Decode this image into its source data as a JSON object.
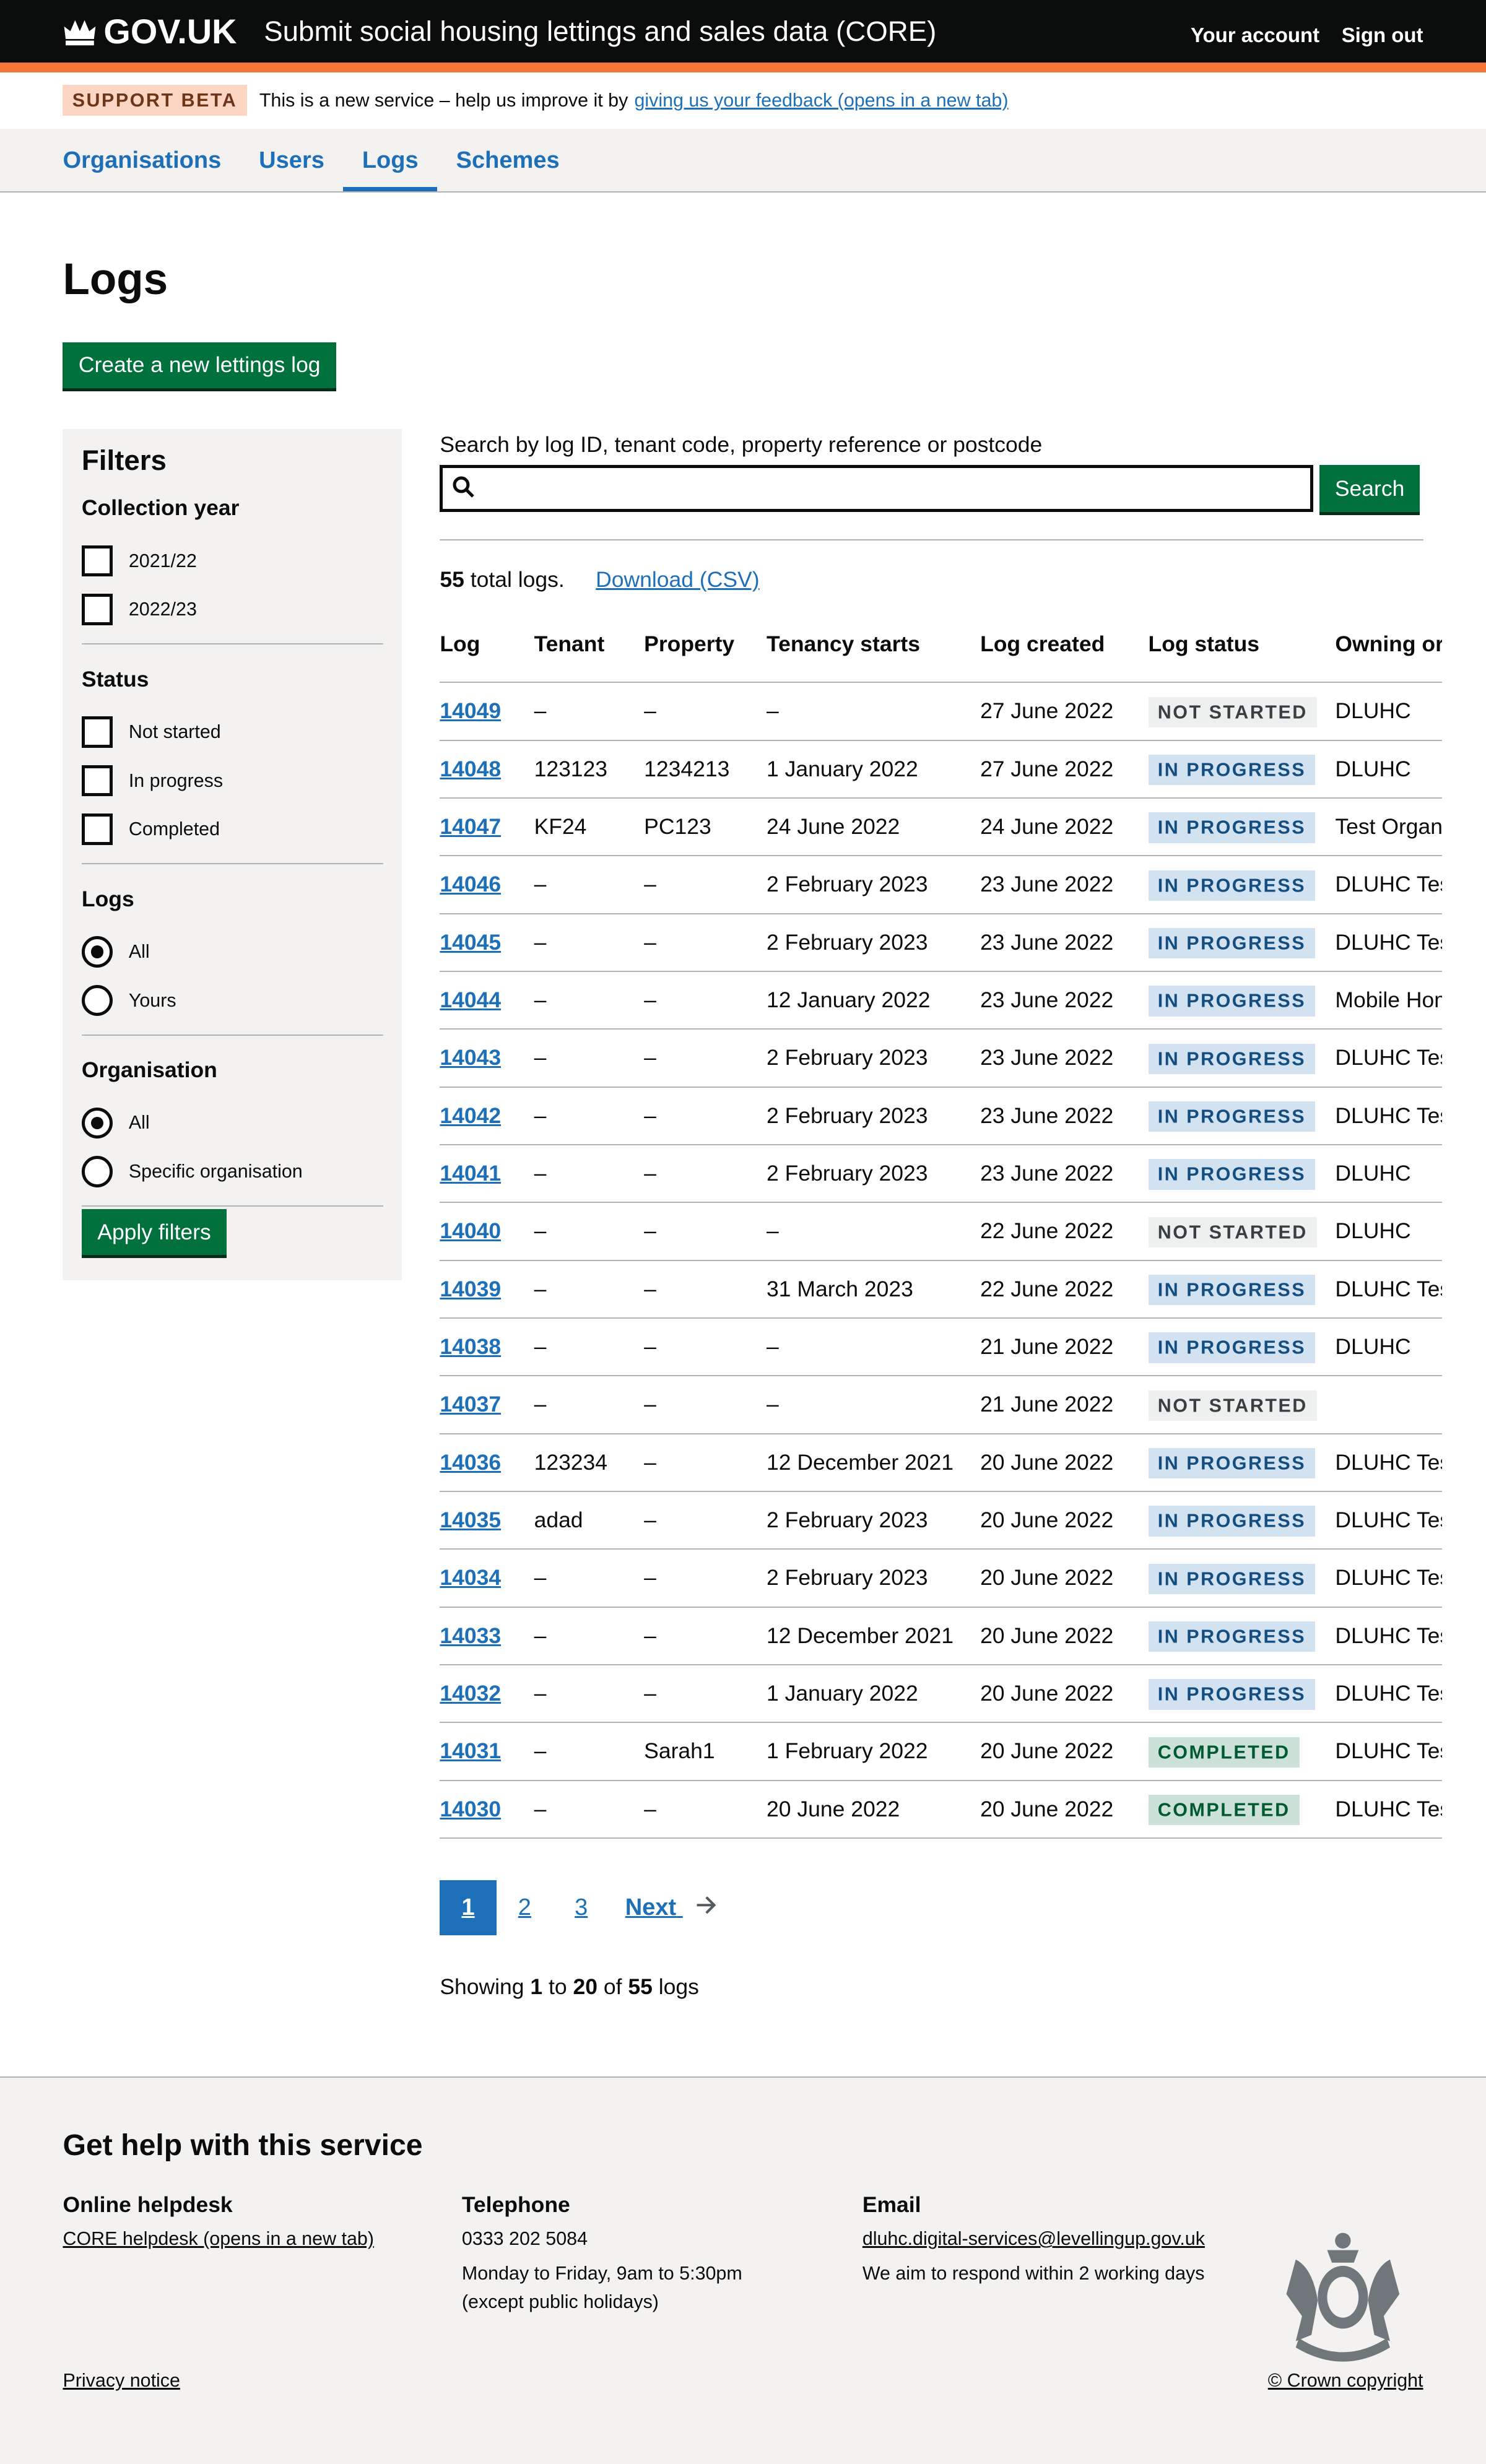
{
  "header": {
    "logo": "GOV.UK",
    "service": "Submit social housing lettings and sales data (CORE)",
    "your_account": "Your account",
    "sign_out": "Sign out"
  },
  "banner": {
    "tag": "SUPPORT BETA",
    "text": "This is a new service – help us improve it by",
    "link": "giving us your feedback (opens in a new tab)"
  },
  "nav": [
    {
      "label": "Organisations"
    },
    {
      "label": "Users"
    },
    {
      "label": "Logs",
      "active": true
    },
    {
      "label": "Schemes"
    }
  ],
  "page": {
    "title": "Logs",
    "create_button": "Create a new lettings log"
  },
  "filters": {
    "title": "Filters",
    "collection_year": {
      "label": "Collection year",
      "options": [
        "2021/22",
        "2022/23"
      ]
    },
    "status": {
      "label": "Status",
      "options": [
        "Not started",
        "In progress",
        "Completed"
      ]
    },
    "logs": {
      "label": "Logs",
      "options": [
        "All",
        "Yours"
      ],
      "selected": "All"
    },
    "organisation": {
      "label": "Organisation",
      "options": [
        "All",
        "Specific organisation"
      ],
      "selected": "All"
    },
    "apply": "Apply filters"
  },
  "search": {
    "label": "Search by log ID, tenant code, property reference or postcode",
    "value": "",
    "button": "Search"
  },
  "summary": {
    "count": "55",
    "count_suffix": "total logs.",
    "download": "Download (CSV)"
  },
  "table": {
    "headers": [
      "Log",
      "Tenant",
      "Property",
      "Tenancy starts",
      "Log created",
      "Log status",
      "Owning organisation"
    ],
    "rows": [
      [
        "14049",
        "–",
        "–",
        "–",
        "27 June 2022",
        "NOT STARTED",
        "DLUHC"
      ],
      [
        "14048",
        "123123",
        "1234213",
        "1 January 2022",
        "27 June 2022",
        "IN PROGRESS",
        "DLUHC"
      ],
      [
        "14047",
        "KF24",
        "PC123",
        "24 June 2022",
        "24 June 2022",
        "IN PROGRESS",
        "Test Organisation"
      ],
      [
        "14046",
        "–",
        "–",
        "2 February 2023",
        "23 June 2022",
        "IN PROGRESS",
        "DLUHC Test"
      ],
      [
        "14045",
        "–",
        "–",
        "2 February 2023",
        "23 June 2022",
        "IN PROGRESS",
        "DLUHC Test"
      ],
      [
        "14044",
        "–",
        "–",
        "12 January 2022",
        "23 June 2022",
        "IN PROGRESS",
        "Mobile Homes"
      ],
      [
        "14043",
        "–",
        "–",
        "2 February 2023",
        "23 June 2022",
        "IN PROGRESS",
        "DLUHC Test"
      ],
      [
        "14042",
        "–",
        "–",
        "2 February 2023",
        "23 June 2022",
        "IN PROGRESS",
        "DLUHC Test"
      ],
      [
        "14041",
        "–",
        "–",
        "2 February 2023",
        "23 June 2022",
        "IN PROGRESS",
        "DLUHC"
      ],
      [
        "14040",
        "–",
        "–",
        "–",
        "22 June 2022",
        "NOT STARTED",
        "DLUHC"
      ],
      [
        "14039",
        "–",
        "–",
        "31 March 2023",
        "22 June 2022",
        "IN PROGRESS",
        "DLUHC Test"
      ],
      [
        "14038",
        "–",
        "–",
        "–",
        "21 June 2022",
        "IN PROGRESS",
        "DLUHC"
      ],
      [
        "14037",
        "–",
        "–",
        "–",
        "21 June 2022",
        "NOT STARTED",
        ""
      ],
      [
        "14036",
        "123234",
        "–",
        "12 December 2021",
        "20 June 2022",
        "IN PROGRESS",
        "DLUHC Test"
      ],
      [
        "14035",
        "adad",
        "–",
        "2 February 2023",
        "20 June 2022",
        "IN PROGRESS",
        "DLUHC Test"
      ],
      [
        "14034",
        "–",
        "–",
        "2 February 2023",
        "20 June 2022",
        "IN PROGRESS",
        "DLUHC Test"
      ],
      [
        "14033",
        "–",
        "–",
        "12 December 2021",
        "20 June 2022",
        "IN PROGRESS",
        "DLUHC Test"
      ],
      [
        "14032",
        "–",
        "–",
        "1 January 2022",
        "20 June 2022",
        "IN PROGRESS",
        "DLUHC Test"
      ],
      [
        "14031",
        "–",
        "Sarah1",
        "1 February 2022",
        "20 June 2022",
        "COMPLETED",
        "DLUHC Test"
      ],
      [
        "14030",
        "–",
        "–",
        "20 June 2022",
        "20 June 2022",
        "COMPLETED",
        "DLUHC Test"
      ]
    ]
  },
  "pagination": {
    "pages": [
      "1",
      "2",
      "3"
    ],
    "current": "1",
    "next": "Next"
  },
  "showing": {
    "prefix": "Showing",
    "from": "1",
    "to_word": "to",
    "to": "20",
    "of_word": "of",
    "total": "55",
    "suffix": "logs"
  },
  "footer": {
    "title": "Get help with this service",
    "helpdesk": {
      "title": "Online helpdesk",
      "link": "CORE helpdesk (opens in a new tab)"
    },
    "telephone": {
      "title": "Telephone",
      "number": "0333 202 5084",
      "hours": "Monday to Friday, 9am to 5:30pm",
      "note": "(except public holidays)"
    },
    "email": {
      "title": "Email",
      "address": "dluhc.digital-services@levellingup.gov.uk",
      "note": "We aim to respond within 2 working days"
    },
    "privacy": "Privacy notice",
    "copyright": "© Crown copyright"
  },
  "colors": {
    "header": "#0b0c0c",
    "accent": "#f47738",
    "link": "#1d70b8",
    "button": "#00703c"
  }
}
